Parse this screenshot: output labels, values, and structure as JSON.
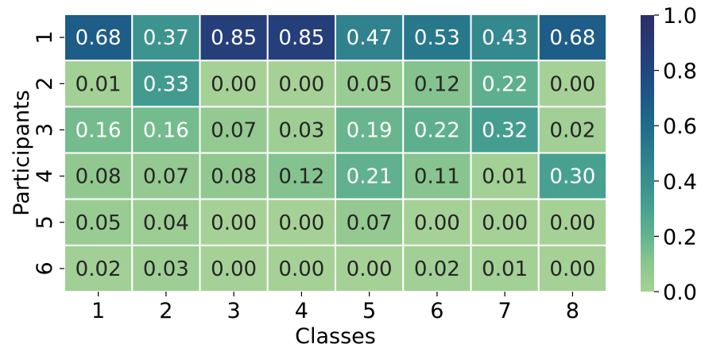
{
  "chart_data": {
    "type": "heatmap",
    "xlabel": "Classes",
    "ylabel": "Participants",
    "x_categories": [
      "1",
      "2",
      "3",
      "4",
      "5",
      "6",
      "7",
      "8"
    ],
    "y_categories": [
      "1",
      "2",
      "3",
      "4",
      "5",
      "6"
    ],
    "values": [
      [
        0.68,
        0.37,
        0.85,
        0.85,
        0.47,
        0.53,
        0.43,
        0.68
      ],
      [
        0.01,
        0.33,
        0.0,
        0.0,
        0.05,
        0.12,
        0.22,
        0.0
      ],
      [
        0.16,
        0.16,
        0.07,
        0.03,
        0.19,
        0.22,
        0.32,
        0.02
      ],
      [
        0.08,
        0.07,
        0.08,
        0.12,
        0.21,
        0.11,
        0.01,
        0.3
      ],
      [
        0.05,
        0.04,
        0.0,
        0.0,
        0.07,
        0.0,
        0.0,
        0.0
      ],
      [
        0.02,
        0.03,
        0.0,
        0.0,
        0.0,
        0.02,
        0.01,
        0.0
      ]
    ],
    "value_labels": [
      [
        "0.68",
        "0.37",
        "0.85",
        "0.85",
        "0.47",
        "0.53",
        "0.43",
        "0.68"
      ],
      [
        "0.01",
        "0.33",
        "0.00",
        "0.00",
        "0.05",
        "0.12",
        "0.22",
        "0.00"
      ],
      [
        "0.16",
        "0.16",
        "0.07",
        "0.03",
        "0.19",
        "0.22",
        "0.32",
        "0.02"
      ],
      [
        "0.08",
        "0.07",
        "0.08",
        "0.12",
        "0.21",
        "0.11",
        "0.01",
        "0.30"
      ],
      [
        "0.05",
        "0.04",
        "0.00",
        "0.00",
        "0.07",
        "0.00",
        "0.00",
        "0.00"
      ],
      [
        "0.02",
        "0.03",
        "0.00",
        "0.00",
        "0.00",
        "0.02",
        "0.01",
        "0.00"
      ]
    ],
    "colorbar": {
      "range": [
        0.0,
        1.0
      ],
      "tick_values": [
        0.0,
        0.2,
        0.4,
        0.6,
        0.8,
        1.0
      ],
      "tick_labels": [
        "0.0",
        "0.2",
        "0.4",
        "0.6",
        "0.8",
        "1.0"
      ]
    },
    "colormap": [
      "#a6d196",
      "#8cc68f",
      "#64b38e",
      "#48a190",
      "#388e8f",
      "#2c7d8d",
      "#206b8a",
      "#1c5986",
      "#21467f",
      "#283874",
      "#2c2f68"
    ],
    "text_colors": {
      "dark": "#262626",
      "light": "#ffffff"
    },
    "grid_line_color": "#ffffff"
  }
}
